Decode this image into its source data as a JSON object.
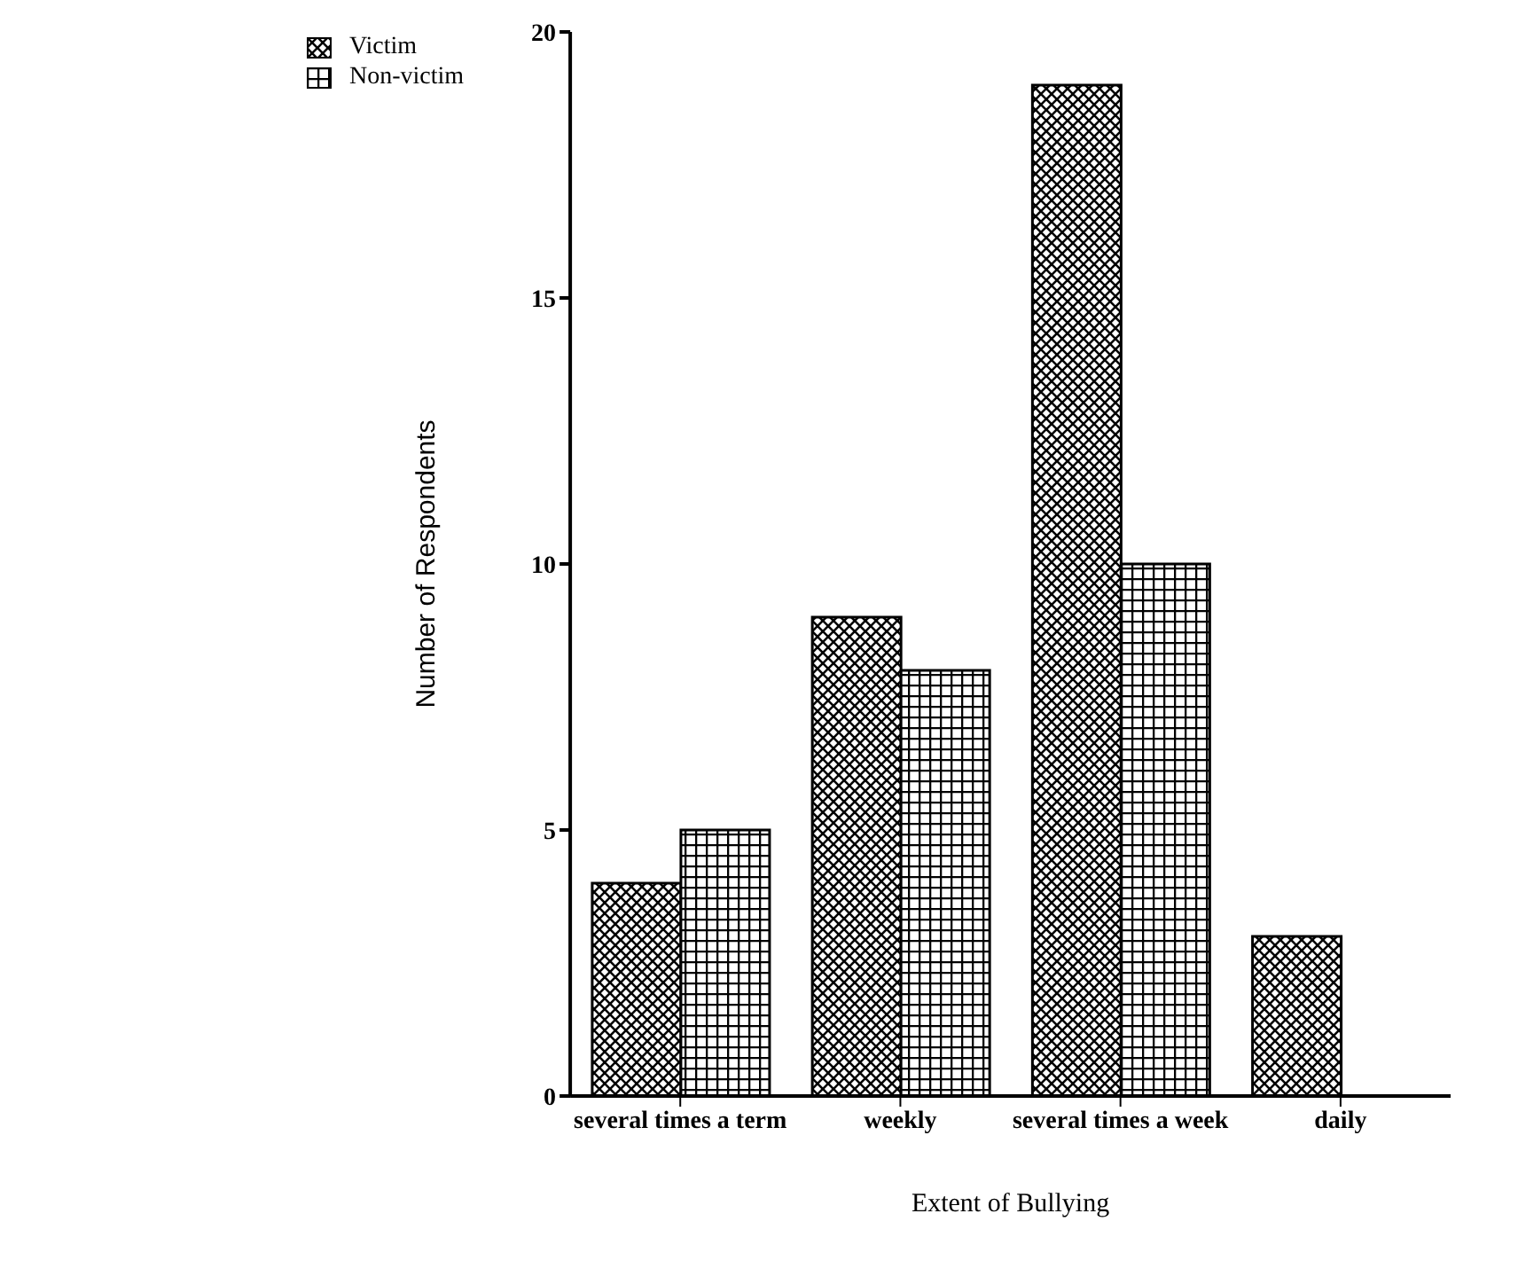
{
  "chart_data": {
    "type": "bar",
    "xlabel": "Extent of Bullying",
    "ylabel": "Number of Respondents",
    "categories": [
      "several times a term",
      "weekly",
      "several times a week",
      "daily"
    ],
    "series": [
      {
        "name": "Victim",
        "color": "#000000",
        "values": [
          4,
          9,
          19,
          3
        ]
      },
      {
        "name": "Non-victim",
        "color": "#000000",
        "values": [
          5,
          8,
          10,
          0
        ]
      }
    ],
    "ylim": [
      0,
      20
    ],
    "yticks": [
      0,
      5,
      10,
      15,
      20
    ],
    "grid": false,
    "legend": "top left"
  }
}
